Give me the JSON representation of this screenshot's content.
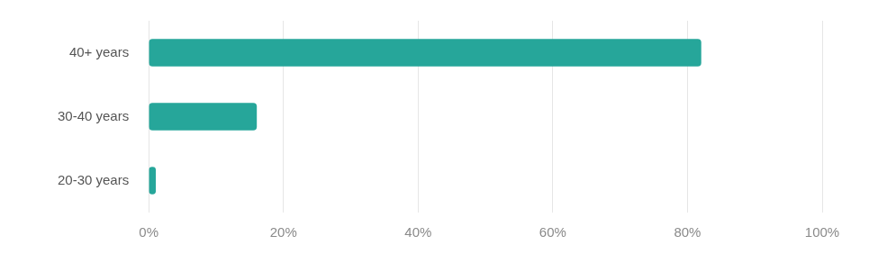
{
  "chart_data": {
    "type": "bar",
    "orientation": "horizontal",
    "categories": [
      "40+ years",
      "30-40 years",
      "20-30 years"
    ],
    "values": [
      82,
      16,
      1
    ],
    "color": "#26a69a",
    "xlim": [
      0,
      100
    ],
    "xticks": [
      {
        "value": 0,
        "label": "0%"
      },
      {
        "value": 20,
        "label": "20%"
      },
      {
        "value": 40,
        "label": "40%"
      },
      {
        "value": 60,
        "label": "60%"
      },
      {
        "value": 80,
        "label": "80%"
      },
      {
        "value": 100,
        "label": "100%"
      }
    ],
    "grid": true
  }
}
